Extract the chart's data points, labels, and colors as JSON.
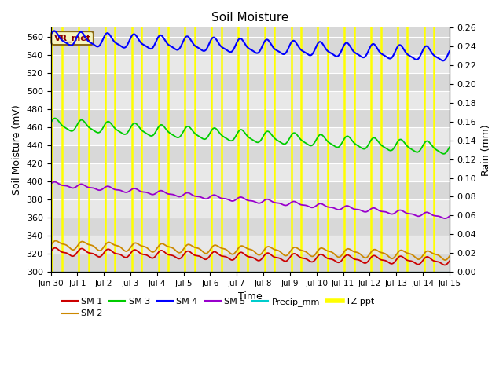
{
  "title": "Soil Moisture",
  "xlabel": "Time",
  "ylabel_left": "Soil Moisture (mV)",
  "ylabel_right": "Rain (mm)",
  "ylim_left": [
    300,
    570
  ],
  "ylim_right": [
    0.0,
    0.26
  ],
  "yticks_left": [
    300,
    320,
    340,
    360,
    380,
    400,
    420,
    440,
    460,
    480,
    500,
    520,
    540,
    560
  ],
  "yticks_right": [
    0.0,
    0.02,
    0.04,
    0.06,
    0.08,
    0.1,
    0.12,
    0.14,
    0.16,
    0.18,
    0.2,
    0.22,
    0.24,
    0.26
  ],
  "annotation_text": "VR_met",
  "sm1_color": "#cc0000",
  "sm2_color": "#cc8800",
  "sm3_color": "#00cc00",
  "sm4_color": "#0000ff",
  "sm5_color": "#9900cc",
  "precip_color": "#00cccc",
  "tzppt_color": "#ffff00",
  "background_color": "#d8d8d8",
  "grid_color": "#f0f0f0",
  "tzppt_days": [
    0.05,
    0.42,
    1.05,
    1.42,
    2.05,
    2.42,
    3.05,
    3.42,
    4.05,
    4.42,
    5.05,
    5.42,
    6.05,
    6.42,
    7.05,
    7.42,
    8.05,
    8.42,
    9.05,
    9.42,
    10.05,
    10.42,
    11.05,
    11.42,
    12.05,
    12.42,
    13.05,
    13.42,
    14.05,
    14.42
  ]
}
